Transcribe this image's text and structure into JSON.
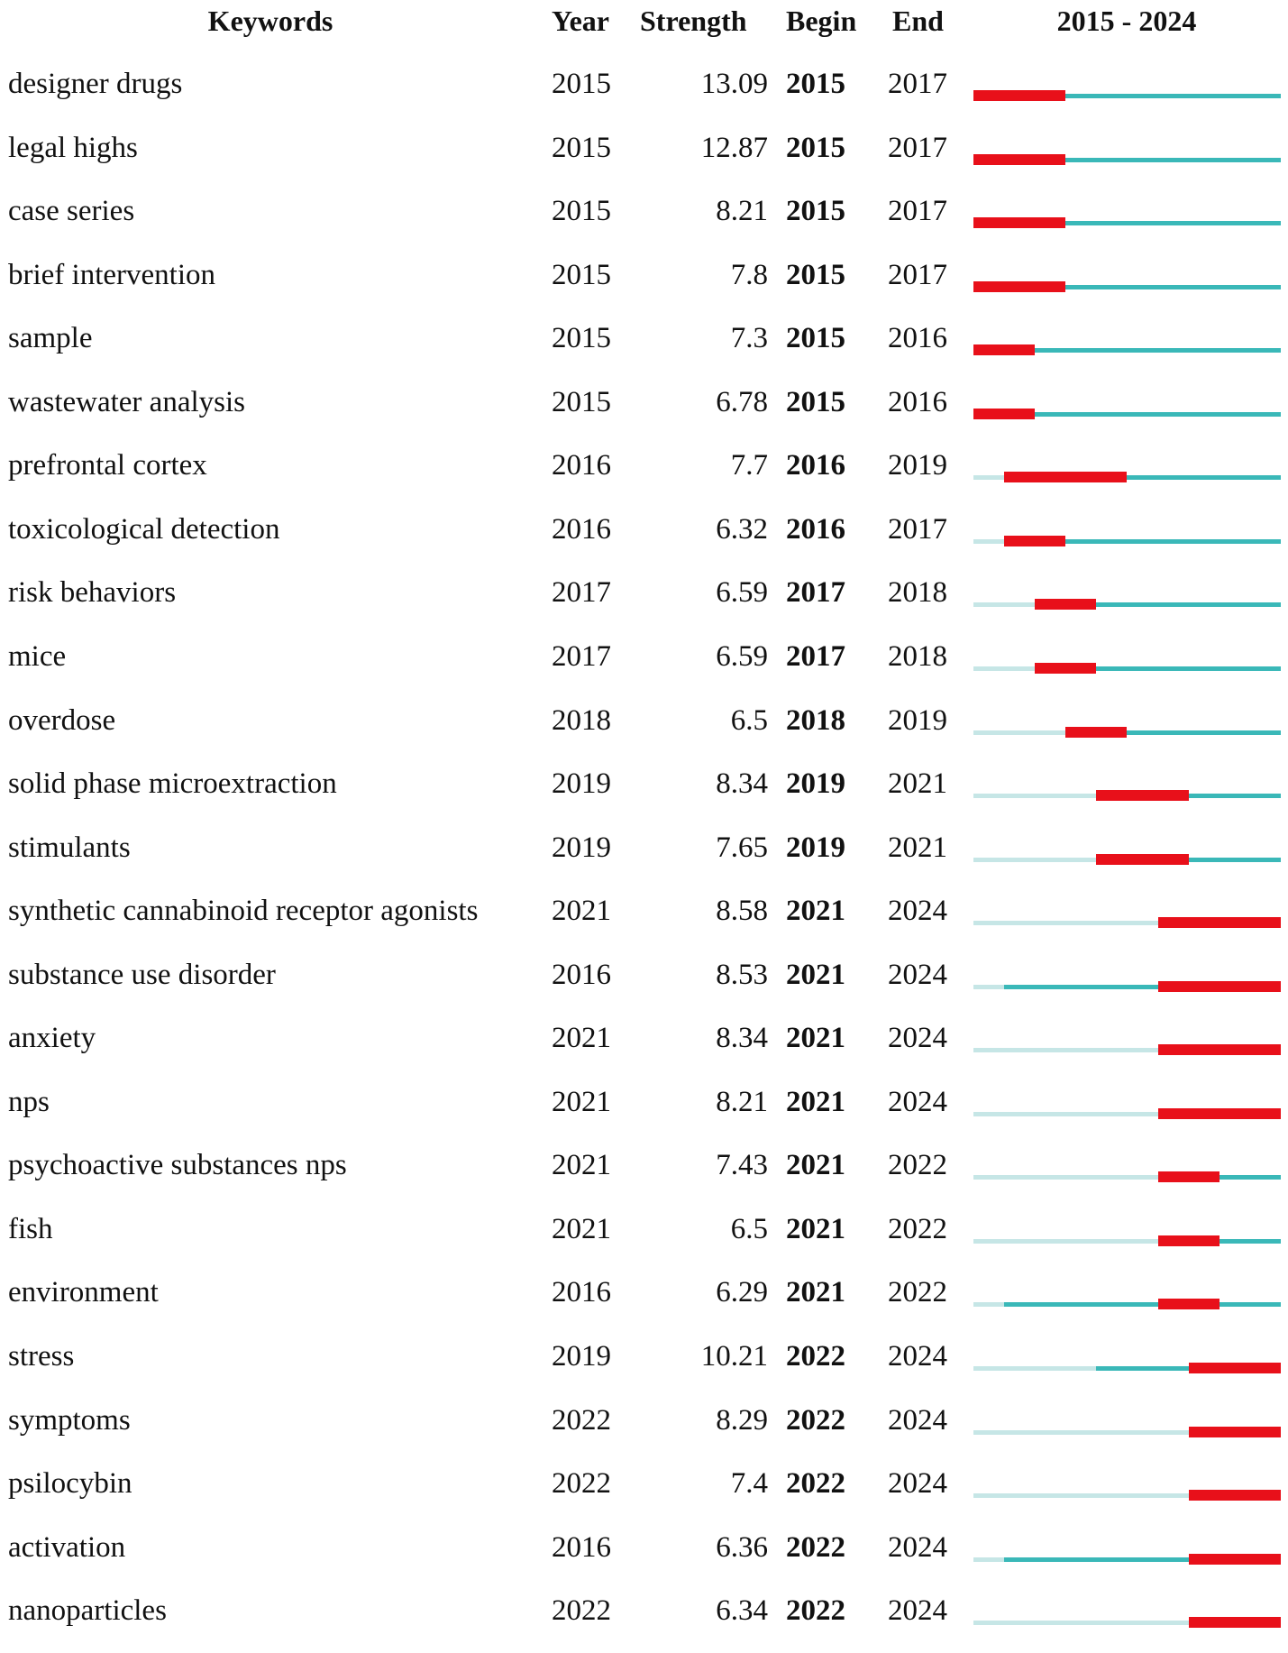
{
  "chart_data": {
    "type": "table",
    "headers": {
      "keywords": "Keywords",
      "year": "Year",
      "strength": "Strength",
      "begin": "Begin",
      "end": "End",
      "range": "2015 - 2024"
    },
    "range_start": 2015,
    "range_end": 2024,
    "colors": {
      "burst": "#e8101a",
      "active": "#3ab8b8",
      "inactive": "#c6e6e6"
    },
    "rows": [
      {
        "keyword": "designer drugs",
        "year": "2015",
        "strength": "13.09",
        "begin": "2015",
        "end": "2017"
      },
      {
        "keyword": "legal highs",
        "year": "2015",
        "strength": "12.87",
        "begin": "2015",
        "end": "2017"
      },
      {
        "keyword": "case series",
        "year": "2015",
        "strength": "8.21",
        "begin": "2015",
        "end": "2017"
      },
      {
        "keyword": "brief intervention",
        "year": "2015",
        "strength": "7.8",
        "begin": "2015",
        "end": "2017"
      },
      {
        "keyword": "sample",
        "year": "2015",
        "strength": "7.3",
        "begin": "2015",
        "end": "2016"
      },
      {
        "keyword": "wastewater analysis",
        "year": "2015",
        "strength": "6.78",
        "begin": "2015",
        "end": "2016"
      },
      {
        "keyword": "prefrontal cortex",
        "year": "2016",
        "strength": "7.7",
        "begin": "2016",
        "end": "2019"
      },
      {
        "keyword": "toxicological detection",
        "year": "2016",
        "strength": "6.32",
        "begin": "2016",
        "end": "2017"
      },
      {
        "keyword": "risk behaviors",
        "year": "2017",
        "strength": "6.59",
        "begin": "2017",
        "end": "2018"
      },
      {
        "keyword": "mice",
        "year": "2017",
        "strength": "6.59",
        "begin": "2017",
        "end": "2018"
      },
      {
        "keyword": "overdose",
        "year": "2018",
        "strength": "6.5",
        "begin": "2018",
        "end": "2019"
      },
      {
        "keyword": "solid phase microextraction",
        "year": "2019",
        "strength": "8.34",
        "begin": "2019",
        "end": "2021"
      },
      {
        "keyword": "stimulants",
        "year": "2019",
        "strength": "7.65",
        "begin": "2019",
        "end": "2021"
      },
      {
        "keyword": "synthetic cannabinoid receptor agonists",
        "year": "2021",
        "strength": "8.58",
        "begin": "2021",
        "end": "2024"
      },
      {
        "keyword": "substance use disorder",
        "year": "2016",
        "strength": "8.53",
        "begin": "2021",
        "end": "2024"
      },
      {
        "keyword": "anxiety",
        "year": "2021",
        "strength": "8.34",
        "begin": "2021",
        "end": "2024"
      },
      {
        "keyword": "nps",
        "year": "2021",
        "strength": "8.21",
        "begin": "2021",
        "end": "2024"
      },
      {
        "keyword": "psychoactive substances nps",
        "year": "2021",
        "strength": "7.43",
        "begin": "2021",
        "end": "2022"
      },
      {
        "keyword": "fish",
        "year": "2021",
        "strength": "6.5",
        "begin": "2021",
        "end": "2022"
      },
      {
        "keyword": "environment",
        "year": "2016",
        "strength": "6.29",
        "begin": "2021",
        "end": "2022"
      },
      {
        "keyword": "stress",
        "year": "2019",
        "strength": "10.21",
        "begin": "2022",
        "end": "2024"
      },
      {
        "keyword": "symptoms",
        "year": "2022",
        "strength": "8.29",
        "begin": "2022",
        "end": "2024"
      },
      {
        "keyword": "psilocybin",
        "year": "2022",
        "strength": "7.4",
        "begin": "2022",
        "end": "2024"
      },
      {
        "keyword": "activation",
        "year": "2016",
        "strength": "6.36",
        "begin": "2022",
        "end": "2024"
      },
      {
        "keyword": "nanoparticles",
        "year": "2022",
        "strength": "6.34",
        "begin": "2022",
        "end": "2024"
      }
    ]
  }
}
